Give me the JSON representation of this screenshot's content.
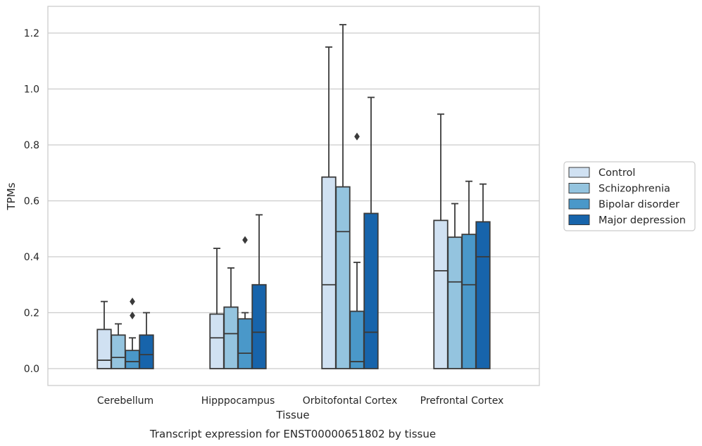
{
  "chart_data": {
    "type": "box",
    "title": "Transcript expression for ENST00000651802 by tissue",
    "xlabel": "Tissue",
    "ylabel": "TPMs",
    "ylim": [
      -0.06,
      1.29
    ],
    "yticks": [
      0.0,
      0.2,
      0.4,
      0.6,
      0.8,
      1.0,
      1.2
    ],
    "ytick_labels": [
      "0.0",
      "0.2",
      "0.4",
      "0.6",
      "0.8",
      "1.0",
      "1.2"
    ],
    "grid": "horizontal",
    "legend_position": "right, outside",
    "categories": [
      "Cerebellum",
      "Hipppocampus",
      "Orbitofontal Cortex",
      "Prefrontal Cortex"
    ],
    "series": [
      {
        "name": "Control",
        "color": "#d0e1f2",
        "boxes": [
          {
            "min": 0.0,
            "q1": 0.0,
            "median": 0.03,
            "q3": 0.14,
            "max": 0.24,
            "outliers": []
          },
          {
            "min": 0.0,
            "q1": 0.0,
            "median": 0.11,
            "q3": 0.195,
            "max": 0.43,
            "outliers": []
          },
          {
            "min": 0.0,
            "q1": 0.0,
            "median": 0.3,
            "q3": 0.685,
            "max": 1.15,
            "outliers": []
          },
          {
            "min": 0.0,
            "q1": 0.0,
            "median": 0.35,
            "q3": 0.53,
            "max": 0.91,
            "outliers": []
          }
        ]
      },
      {
        "name": "Schizophrenia",
        "color": "#94c4df",
        "boxes": [
          {
            "min": 0.0,
            "q1": 0.0,
            "median": 0.04,
            "q3": 0.12,
            "max": 0.16,
            "outliers": []
          },
          {
            "min": 0.0,
            "q1": 0.0,
            "median": 0.125,
            "q3": 0.22,
            "max": 0.36,
            "outliers": []
          },
          {
            "min": 0.0,
            "q1": 0.0,
            "median": 0.49,
            "q3": 0.65,
            "max": 1.23,
            "outliers": []
          },
          {
            "min": 0.0,
            "q1": 0.0,
            "median": 0.31,
            "q3": 0.47,
            "max": 0.59,
            "outliers": []
          }
        ]
      },
      {
        "name": "Bipolar disorder",
        "color": "#4a98c9",
        "boxes": [
          {
            "min": 0.0,
            "q1": 0.0,
            "median": 0.025,
            "q3": 0.065,
            "max": 0.11,
            "outliers": [
              0.19,
              0.24
            ]
          },
          {
            "min": 0.0,
            "q1": 0.0,
            "median": 0.055,
            "q3": 0.178,
            "max": 0.2,
            "outliers": [
              0.46
            ]
          },
          {
            "min": 0.0,
            "q1": 0.0,
            "median": 0.025,
            "q3": 0.205,
            "max": 0.38,
            "outliers": [
              0.83
            ]
          },
          {
            "min": 0.0,
            "q1": 0.0,
            "median": 0.3,
            "q3": 0.48,
            "max": 0.67,
            "outliers": []
          }
        ]
      },
      {
        "name": "Major depression",
        "color": "#1764ab",
        "boxes": [
          {
            "min": 0.0,
            "q1": 0.0,
            "median": 0.05,
            "q3": 0.12,
            "max": 0.2,
            "outliers": []
          },
          {
            "min": 0.0,
            "q1": 0.0,
            "median": 0.13,
            "q3": 0.3,
            "max": 0.55,
            "outliers": []
          },
          {
            "min": 0.0,
            "q1": 0.0,
            "median": 0.13,
            "q3": 0.555,
            "max": 0.97,
            "outliers": []
          },
          {
            "min": 0.0,
            "q1": 0.0,
            "median": 0.4,
            "q3": 0.525,
            "max": 0.66,
            "outliers": []
          }
        ]
      }
    ],
    "colors": {
      "edge": "#3a3a3a",
      "grid": "#cccccc",
      "frame": "#cccccc",
      "text": "#262626"
    }
  }
}
